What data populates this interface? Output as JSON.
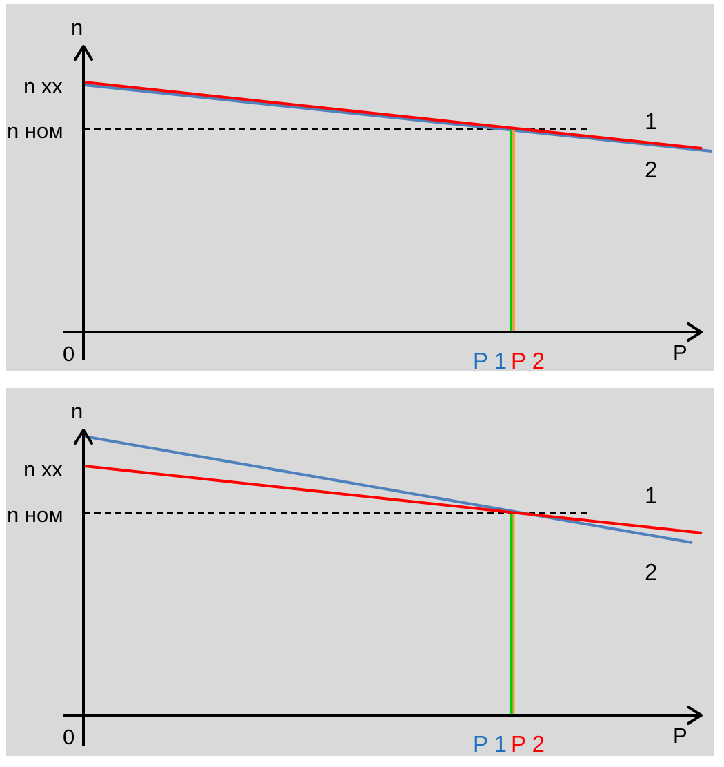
{
  "colors": {
    "background": "#d9d9d9",
    "line_1": "#ff0000",
    "line_2": "#4f81bd",
    "marker_green": "#00cc00",
    "marker_orange": "#e8a040",
    "label_p1": "#1f6fc0",
    "label_p2": "#ff0000"
  },
  "panels": [
    {
      "y_axis_label": "n",
      "x_axis_label": "P",
      "origin_label": "0",
      "n_xx_label": "n xx",
      "n_nom_label": "n ном",
      "line_1_label": "1",
      "line_2_label": "2",
      "p1_label": "P 1",
      "p2_label": "P 2"
    },
    {
      "y_axis_label": "n",
      "x_axis_label": "P",
      "origin_label": "0",
      "n_xx_label": "n xx",
      "n_nom_label": "n ном",
      "line_1_label": "1",
      "line_2_label": "2",
      "p1_label": "P 1",
      "p2_label": "P 2"
    }
  ]
}
